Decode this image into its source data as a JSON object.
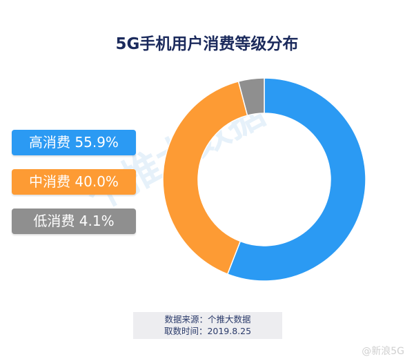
{
  "chart_data": {
    "type": "pie",
    "donut": true,
    "title": "5G手机用户消费等级分布",
    "categories": [
      "高消费",
      "中消费",
      "低消费"
    ],
    "values": [
      55.9,
      40.0,
      4.1
    ],
    "unit": "%",
    "colors": [
      "#2b9af3",
      "#fd9b34",
      "#8f8f8f"
    ],
    "legend_labels": [
      "高消费 55.9%",
      "中消费 40.0%",
      "低消费 4.1%"
    ],
    "legend_placement": "left"
  },
  "source": {
    "line1": "数据来源：个推大数据",
    "line2": "取数时间：2019.8.25"
  },
  "watermark": "个推大数据",
  "weibo_tag": "@新浪5G"
}
